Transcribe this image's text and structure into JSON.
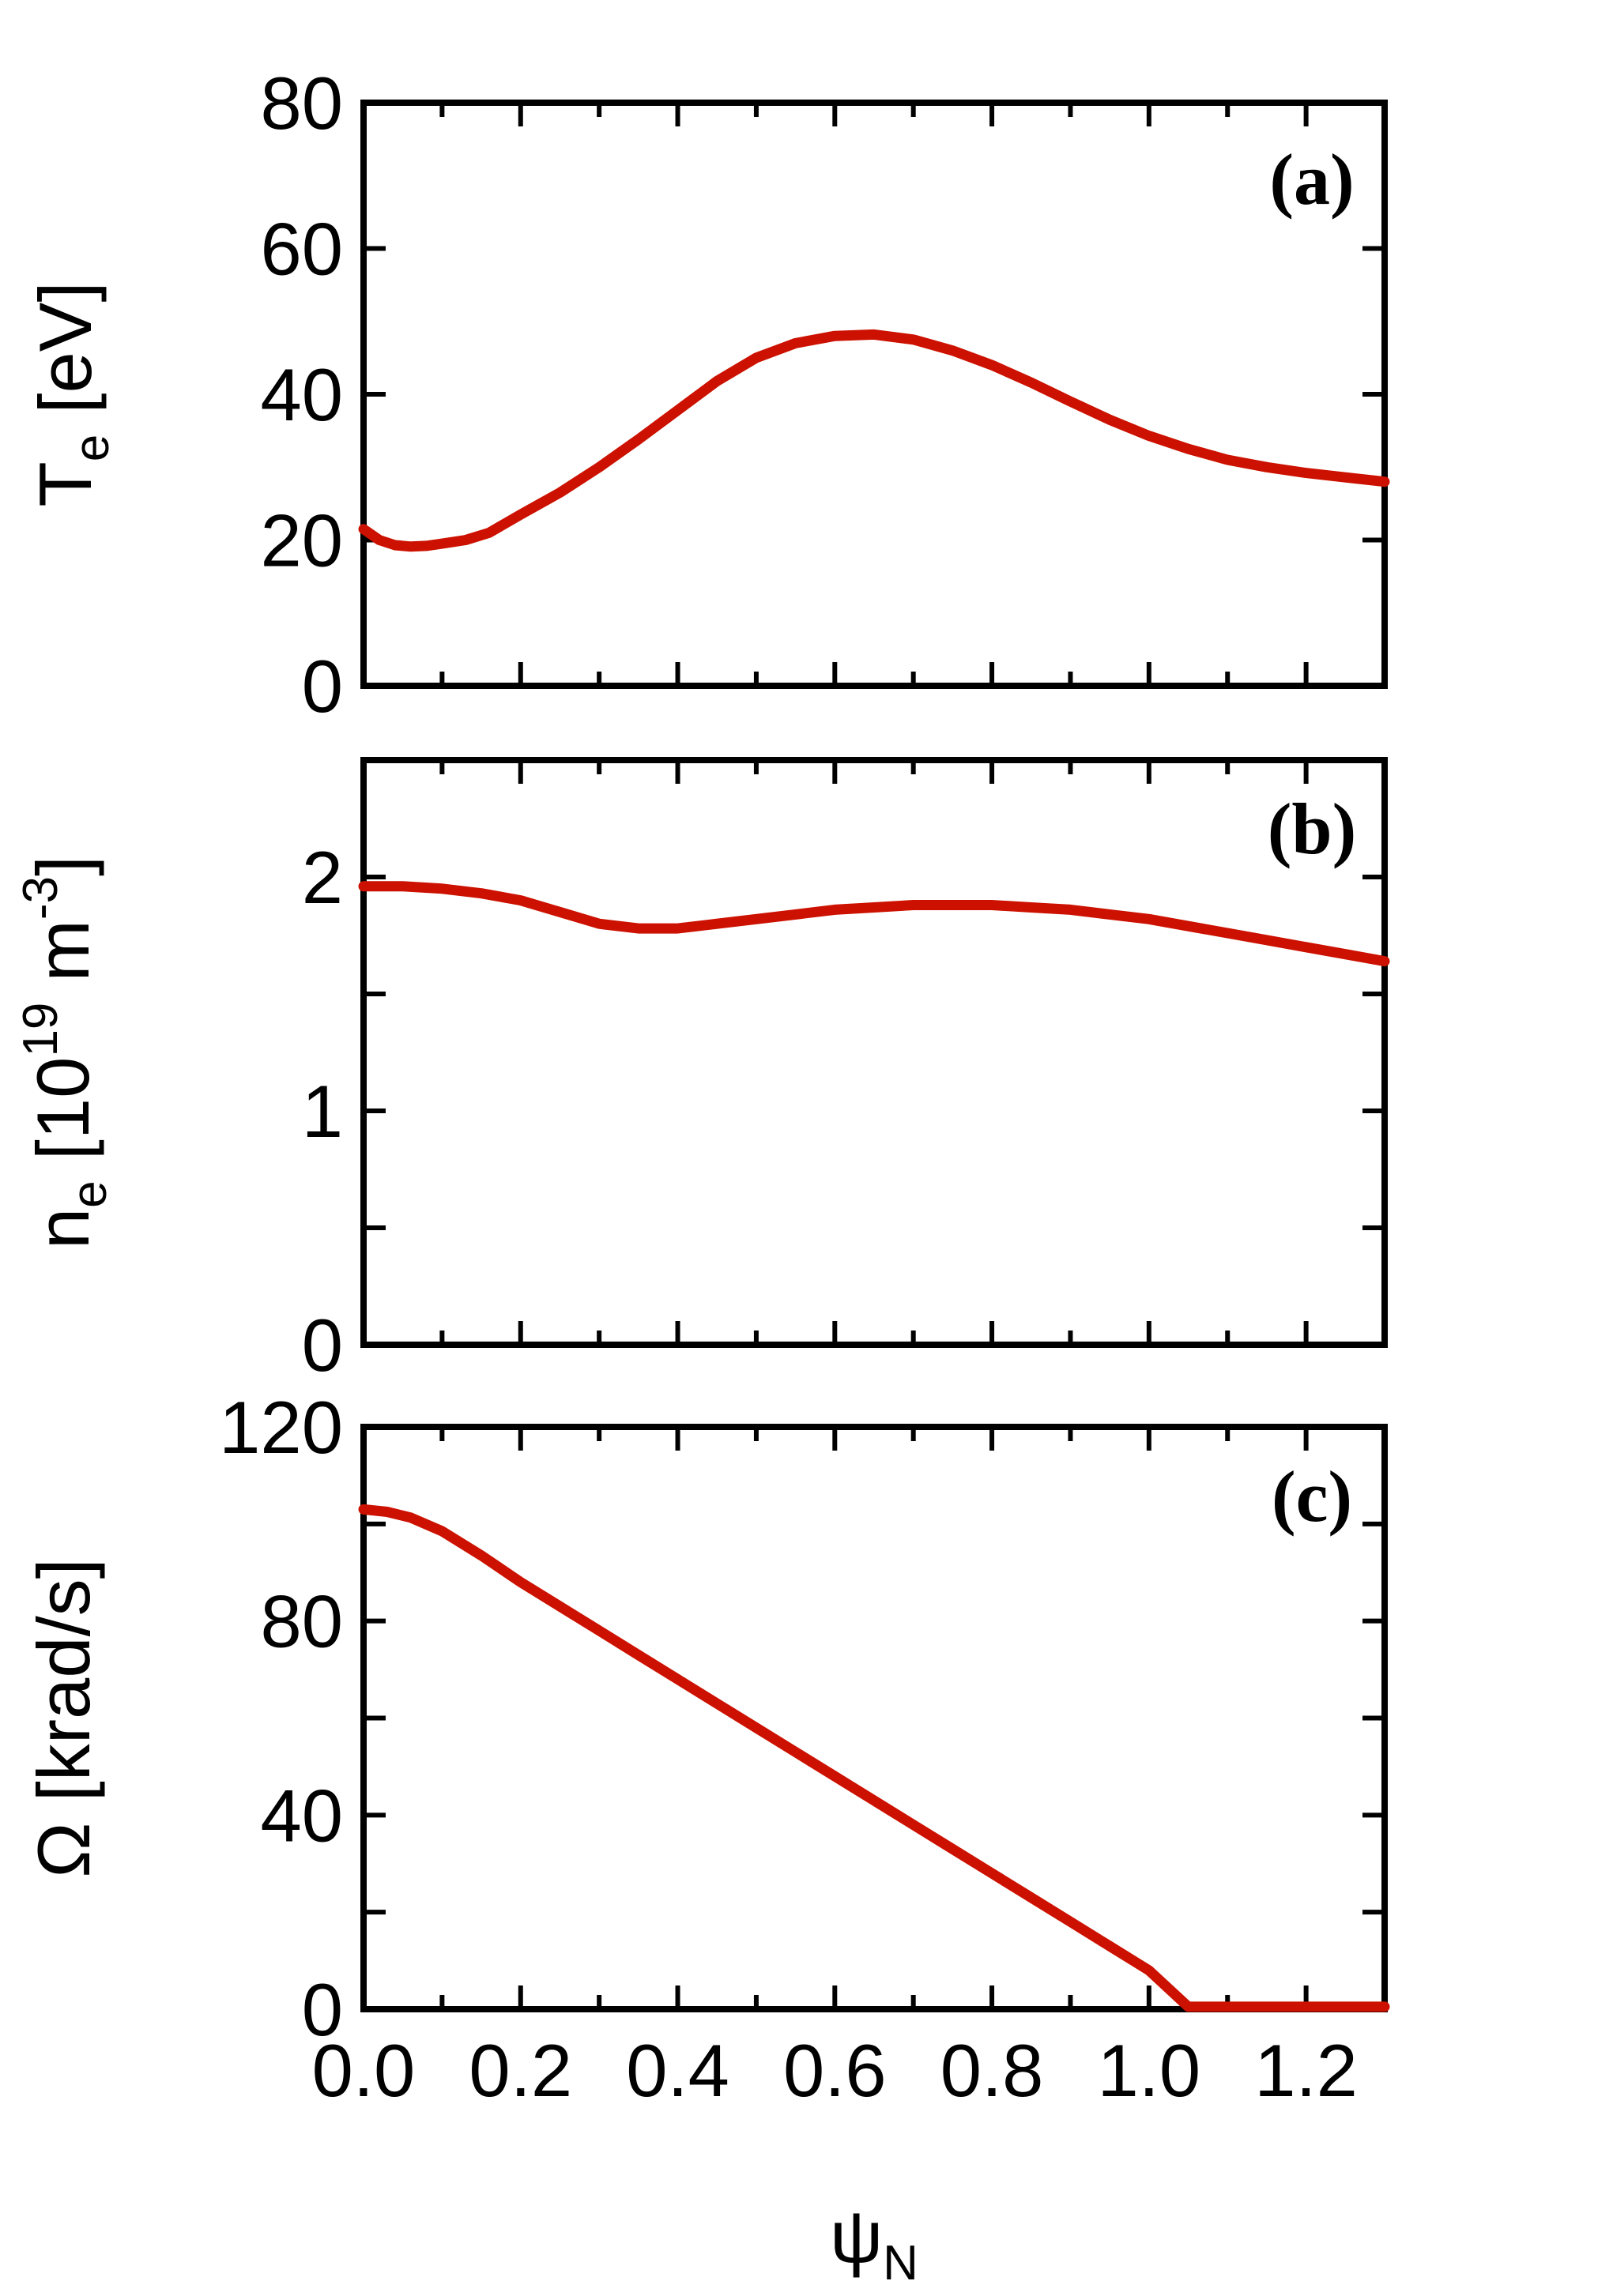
{
  "chart_data": [
    {
      "type": "line",
      "panel_label": "(a)",
      "ylabel": {
        "main": "T",
        "sub": "e",
        "rest": " [eV]"
      },
      "xlim": [
        0.0,
        1.3
      ],
      "ylim": [
        0,
        80
      ],
      "yticks": [
        0,
        20,
        40,
        60,
        80
      ],
      "ytick_labels": [
        "0",
        "20",
        "40",
        "60",
        "80"
      ],
      "x_minor_step": 0.1,
      "color": "#cc1100",
      "x": [
        0.0,
        0.02,
        0.04,
        0.06,
        0.08,
        0.1,
        0.13,
        0.16,
        0.2,
        0.25,
        0.3,
        0.35,
        0.4,
        0.45,
        0.5,
        0.55,
        0.6,
        0.65,
        0.7,
        0.75,
        0.8,
        0.85,
        0.9,
        0.95,
        1.0,
        1.05,
        1.1,
        1.15,
        1.2,
        1.25,
        1.3
      ],
      "y": [
        21.5,
        20.0,
        19.3,
        19.1,
        19.2,
        19.5,
        20.0,
        21.0,
        23.5,
        26.5,
        30.0,
        33.8,
        37.8,
        41.8,
        45.0,
        47.0,
        48.0,
        48.2,
        47.5,
        46.0,
        44.0,
        41.6,
        39.0,
        36.5,
        34.3,
        32.5,
        31.0,
        30.0,
        29.2,
        28.6,
        28.0
      ]
    },
    {
      "type": "line",
      "panel_label": "(b)",
      "ylabel": {
        "main": "n",
        "sub": "e",
        "rest": " [10",
        "sup1": "19",
        "rest2": " m",
        "sup2": "-3",
        "rest3": "]"
      },
      "xlim": [
        0.0,
        1.3
      ],
      "ylim": [
        0,
        2.5
      ],
      "yticks": [
        0,
        0.5,
        1,
        1.5,
        2
      ],
      "ytick_labels": [
        "0",
        "",
        "1",
        "",
        "2"
      ],
      "x_minor_step": 0.1,
      "color": "#cc1100",
      "x": [
        0.0,
        0.05,
        0.1,
        0.15,
        0.2,
        0.25,
        0.3,
        0.35,
        0.4,
        0.45,
        0.5,
        0.55,
        0.6,
        0.65,
        0.7,
        0.75,
        0.8,
        0.85,
        0.9,
        0.95,
        1.0,
        1.05,
        1.1,
        1.15,
        1.2,
        1.25,
        1.3
      ],
      "y": [
        1.96,
        1.96,
        1.95,
        1.93,
        1.9,
        1.85,
        1.8,
        1.78,
        1.78,
        1.8,
        1.82,
        1.84,
        1.86,
        1.87,
        1.88,
        1.88,
        1.88,
        1.87,
        1.86,
        1.84,
        1.82,
        1.79,
        1.76,
        1.73,
        1.7,
        1.67,
        1.64
      ]
    },
    {
      "type": "line",
      "panel_label": "(c)",
      "ylabel": {
        "main": "Ω [krad/s]"
      },
      "xlabel": {
        "main": "ψ",
        "sub": "N"
      },
      "xlim": [
        0.0,
        1.3
      ],
      "ylim": [
        0,
        120
      ],
      "yticks": [
        0,
        20,
        40,
        60,
        80,
        100,
        120
      ],
      "ytick_labels": [
        "0",
        "",
        "40",
        "",
        "80",
        "",
        "120"
      ],
      "xticks": [
        0.0,
        0.2,
        0.4,
        0.6,
        0.8,
        1.0,
        1.2
      ],
      "xtick_labels": [
        "0.0",
        "0.2",
        "0.4",
        "0.6",
        "0.8",
        "1.0",
        "1.2"
      ],
      "x_minor_step": 0.1,
      "color": "#cc1100",
      "x": [
        0.0,
        0.03,
        0.06,
        0.1,
        0.15,
        0.2,
        0.25,
        0.3,
        0.35,
        0.4,
        0.45,
        0.5,
        0.55,
        0.6,
        0.65,
        0.7,
        0.75,
        0.8,
        0.85,
        0.9,
        0.95,
        0.98,
        1.0,
        1.05,
        1.1,
        1.15,
        1.2,
        1.25,
        1.3
      ],
      "y": [
        103.0,
        102.5,
        101.3,
        98.5,
        93.5,
        88.0,
        83.0,
        78.0,
        73.0,
        68.0,
        63.0,
        58.0,
        53.0,
        48.0,
        43.0,
        38.0,
        33.0,
        28.0,
        23.0,
        18.0,
        13.0,
        10.0,
        8.0,
        0.5,
        0.5,
        0.5,
        0.5,
        0.5,
        0.5
      ]
    }
  ]
}
